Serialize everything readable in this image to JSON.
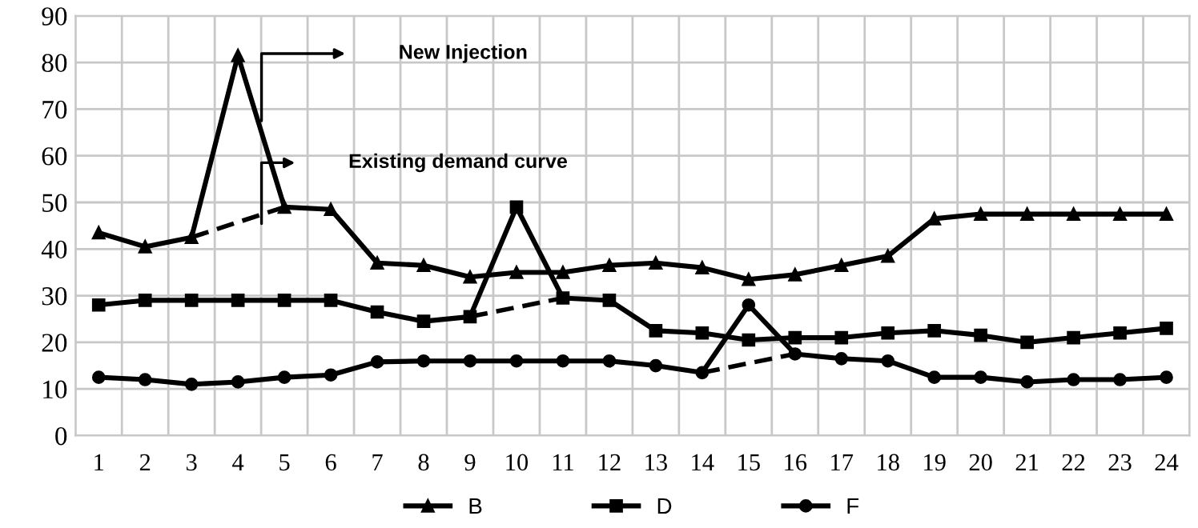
{
  "chart_data": {
    "type": "line",
    "categories": [
      "1",
      "2",
      "3",
      "4",
      "5",
      "6",
      "7",
      "8",
      "9",
      "10",
      "11",
      "12",
      "13",
      "14",
      "15",
      "16",
      "17",
      "18",
      "19",
      "20",
      "21",
      "22",
      "23",
      "24"
    ],
    "series": [
      {
        "name": "B",
        "color": "#000000",
        "marker": "triangle",
        "line_style": "solid",
        "values": [
          43.5,
          40.5,
          42.5,
          81.5,
          49,
          48.5,
          37,
          36.5,
          34,
          35,
          35,
          36.5,
          37,
          36,
          33.5,
          34.5,
          36.5,
          38.5,
          46.5,
          47.5,
          47.5,
          47.5,
          47.5,
          47.5
        ]
      },
      {
        "name": "D",
        "color": "#000000",
        "marker": "square",
        "line_style": "solid",
        "values": [
          28,
          29,
          29,
          29,
          29,
          29,
          26.5,
          24.5,
          25.5,
          49,
          29.5,
          29,
          22.5,
          22,
          20.5,
          21,
          21,
          22,
          22.5,
          21.5,
          20,
          21,
          22,
          23
        ]
      },
      {
        "name": "F",
        "color": "#000000",
        "marker": "circle",
        "line_style": "solid",
        "values": [
          12.5,
          12,
          11,
          11.5,
          12.5,
          13,
          15.8,
          16,
          16,
          16,
          16,
          16,
          15,
          13.5,
          28,
          17.5,
          16.5,
          16,
          12.5,
          12.5,
          11.5,
          12,
          12,
          12.5
        ]
      },
      {
        "color": "#000000",
        "marker": "none",
        "line_style": "dashed",
        "values": [
          null,
          null,
          42.5,
          null,
          49,
          null,
          null,
          null,
          null,
          null,
          null,
          null,
          null,
          null,
          null,
          null,
          null,
          null,
          null,
          null,
          null,
          null,
          null,
          null
        ]
      },
      {
        "color": "#000000",
        "marker": "none",
        "line_style": "dashed",
        "values": [
          null,
          null,
          null,
          null,
          null,
          null,
          null,
          null,
          25.5,
          null,
          29.5,
          null,
          null,
          null,
          null,
          null,
          null,
          null,
          null,
          null,
          null,
          null,
          null,
          null
        ]
      },
      {
        "color": "#000000",
        "marker": "none",
        "line_style": "dashed",
        "values": [
          null,
          null,
          null,
          null,
          null,
          null,
          null,
          null,
          null,
          null,
          null,
          null,
          null,
          13.5,
          null,
          17.5,
          null,
          null,
          null,
          null,
          null,
          null,
          null,
          null
        ]
      }
    ],
    "ylim": [
      0,
      90
    ],
    "yticks": [
      0,
      10,
      20,
      30,
      40,
      50,
      60,
      70,
      80,
      90
    ],
    "grid": true,
    "legend": "bottom",
    "annotations": [
      "New Injection",
      "Existing demand curve"
    ]
  }
}
